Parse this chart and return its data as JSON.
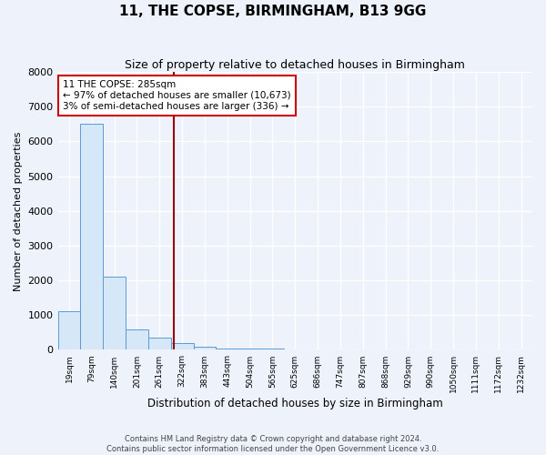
{
  "title": "11, THE COPSE, BIRMINGHAM, B13 9GG",
  "subtitle": "Size of property relative to detached houses in Birmingham",
  "xlabel": "Distribution of detached houses by size in Birmingham",
  "ylabel": "Number of detached properties",
  "footnote1": "Contains HM Land Registry data © Crown copyright and database right 2024.",
  "footnote2": "Contains public sector information licensed under the Open Government Licence v3.0.",
  "bin_labels": [
    "19sqm",
    "79sqm",
    "140sqm",
    "201sqm",
    "261sqm",
    "322sqm",
    "383sqm",
    "443sqm",
    "504sqm",
    "565sqm",
    "625sqm",
    "686sqm",
    "747sqm",
    "807sqm",
    "868sqm",
    "929sqm",
    "990sqm",
    "1050sqm",
    "1111sqm",
    "1172sqm",
    "1232sqm"
  ],
  "bar_values": [
    1100,
    6500,
    2100,
    600,
    350,
    200,
    100,
    50,
    50,
    50,
    20,
    10,
    5,
    5,
    5,
    3,
    3,
    2,
    2,
    1,
    0
  ],
  "bar_color": "#d6e8f7",
  "bar_edge_color": "#5b9bd5",
  "vline_x": 4.65,
  "vline_color": "#990000",
  "annotation_text": "11 THE COPSE: 285sqm\n← 97% of detached houses are smaller (10,673)\n3% of semi-detached houses are larger (336) →",
  "annotation_box_color": "white",
  "annotation_box_edge_color": "#cc0000",
  "ylim": [
    0,
    8000
  ],
  "yticks": [
    0,
    1000,
    2000,
    3000,
    4000,
    5000,
    6000,
    7000,
    8000
  ],
  "background_color": "#eef2fb",
  "grid_color": "white",
  "title_fontsize": 11,
  "subtitle_fontsize": 9
}
